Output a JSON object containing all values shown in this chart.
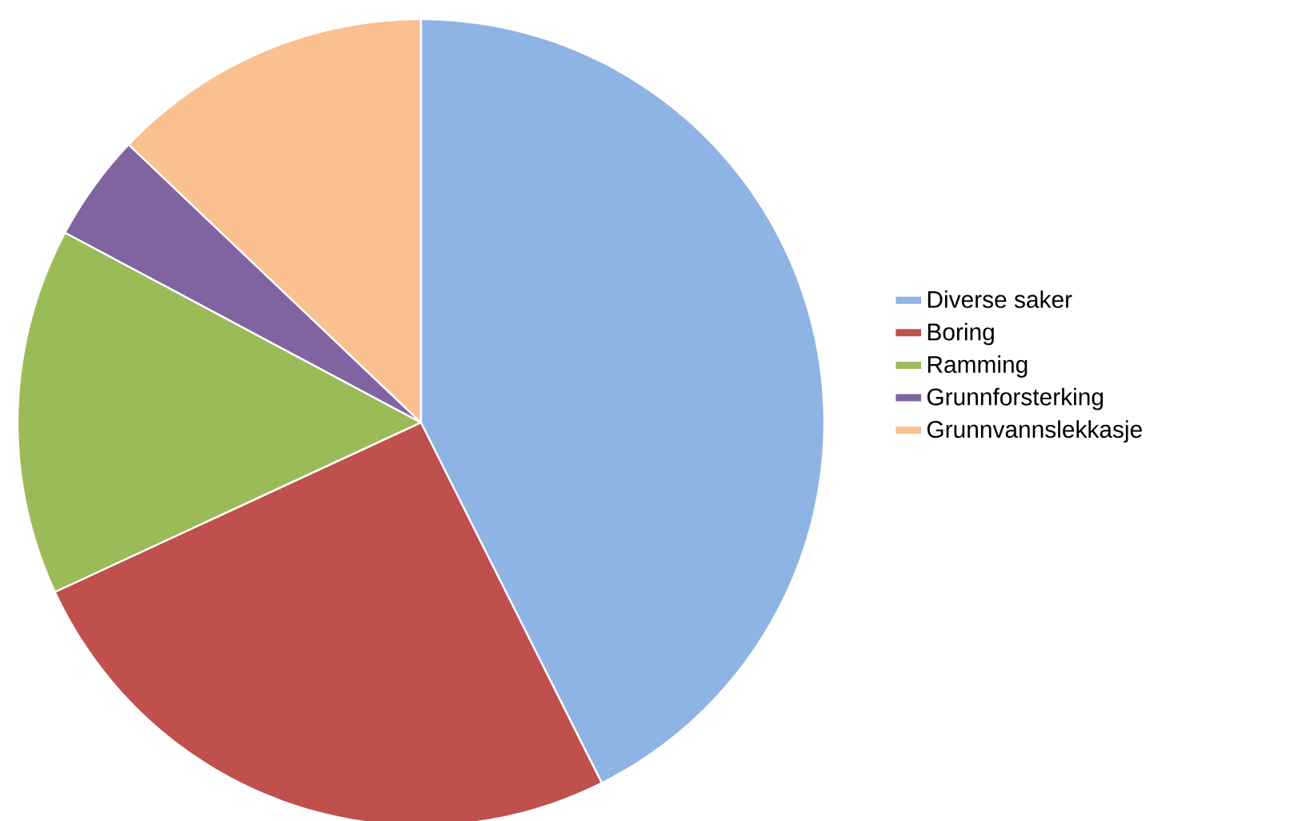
{
  "chart_data": {
    "type": "pie",
    "categories": [
      "Diverse saker",
      "Boring",
      "Ramming",
      "Grunnforsterking",
      "Grunnvannslekkasje"
    ],
    "values": [
      42.6,
      25.5,
      14.7,
      4.3,
      12.9
    ],
    "colors": [
      "#8eb4e3",
      "#c0504d",
      "#9bbb59",
      "#8064a2",
      "#fac090"
    ],
    "legend": "right"
  }
}
